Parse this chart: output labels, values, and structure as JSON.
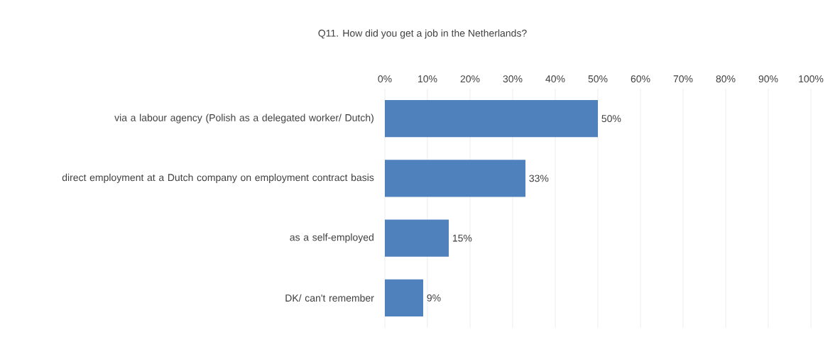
{
  "chart_data": {
    "type": "bar",
    "orientation": "horizontal",
    "title": "Q11. How did you get a job in the Netherlands?",
    "categories": [
      "via a labour agency (Polish as a delegated worker/ Dutch)",
      "direct employment at a Dutch company on employment contract basis",
      "as a self-employed",
      "DK/ can't remember"
    ],
    "values": [
      50,
      33,
      15,
      9
    ],
    "value_labels": [
      "50%",
      "33%",
      "15%",
      "9%"
    ],
    "color": "#4f81bd",
    "xlim": [
      0,
      100
    ],
    "xticks": [
      {
        "value": 0,
        "label": "0%"
      },
      {
        "value": 10,
        "label": "10%"
      },
      {
        "value": 20,
        "label": "20%"
      },
      {
        "value": 30,
        "label": "30%"
      },
      {
        "value": 40,
        "label": "40%"
      },
      {
        "value": 50,
        "label": "50%"
      },
      {
        "value": 60,
        "label": "60%"
      },
      {
        "value": 70,
        "label": "70%"
      },
      {
        "value": 80,
        "label": "80%"
      },
      {
        "value": 90,
        "label": "90%"
      },
      {
        "value": 100,
        "label": "100%"
      }
    ],
    "grid": "x"
  }
}
